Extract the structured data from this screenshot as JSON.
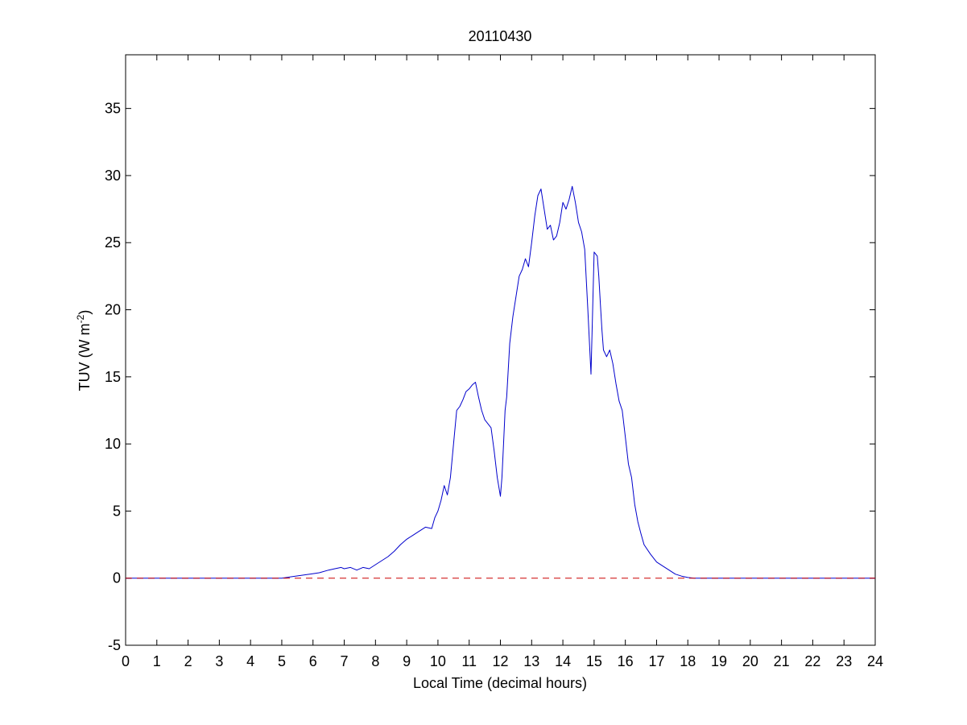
{
  "chart_data": {
    "type": "line",
    "title": "20110430",
    "xlabel": "Local Time (decimal hours)",
    "ylabel_main": "TUV (W m",
    "ylabel_sup": "-2",
    "ylabel_close": ")",
    "xlim": [
      0,
      24
    ],
    "ylim": [
      -5,
      39
    ],
    "xticks": [
      0,
      1,
      2,
      3,
      4,
      5,
      6,
      7,
      8,
      9,
      10,
      11,
      12,
      13,
      14,
      15,
      16,
      17,
      18,
      19,
      20,
      21,
      22,
      23,
      24
    ],
    "yticks": [
      -5,
      0,
      5,
      10,
      15,
      20,
      25,
      30,
      35
    ],
    "grid": false,
    "series": [
      {
        "color": "#0000cc",
        "style": "solid",
        "x": [
          0,
          5.0,
          5.3,
          5.6,
          5.9,
          6.2,
          6.5,
          6.7,
          6.9,
          7.0,
          7.2,
          7.4,
          7.6,
          7.8,
          8.0,
          8.2,
          8.4,
          8.6,
          8.8,
          9.0,
          9.2,
          9.4,
          9.6,
          9.8,
          9.9,
          10.0,
          10.1,
          10.2,
          10.3,
          10.4,
          10.5,
          10.6,
          10.7,
          10.8,
          10.9,
          11.0,
          11.1,
          11.2,
          11.3,
          11.4,
          11.5,
          11.6,
          11.7,
          11.8,
          11.9,
          12.0,
          12.05,
          12.1,
          12.15,
          12.2,
          12.3,
          12.4,
          12.5,
          12.6,
          12.7,
          12.8,
          12.9,
          13.0,
          13.1,
          13.2,
          13.3,
          13.4,
          13.5,
          13.6,
          13.7,
          13.8,
          13.9,
          14.0,
          14.1,
          14.2,
          14.3,
          14.4,
          14.5,
          14.6,
          14.7,
          14.8,
          14.9,
          15.0,
          15.1,
          15.15,
          15.2,
          15.25,
          15.3,
          15.4,
          15.5,
          15.6,
          15.7,
          15.8,
          15.9,
          16.0,
          16.1,
          16.2,
          16.3,
          16.4,
          16.5,
          16.6,
          16.8,
          17.0,
          17.2,
          17.4,
          17.6,
          17.8,
          18.0,
          18.2,
          18.4,
          18.6,
          18.8,
          19.0,
          19.2,
          19.4,
          20.0,
          22.0,
          24.0
        ],
        "y": [
          0,
          0,
          0.1,
          0.2,
          0.3,
          0.4,
          0.6,
          0.7,
          0.8,
          0.7,
          0.8,
          0.6,
          0.8,
          0.7,
          1.0,
          1.3,
          1.6,
          2.0,
          2.5,
          2.9,
          3.2,
          3.5,
          3.8,
          3.7,
          4.5,
          5.0,
          5.8,
          6.9,
          6.2,
          7.5,
          10.0,
          12.5,
          12.8,
          13.3,
          13.9,
          14.1,
          14.4,
          14.6,
          13.5,
          12.5,
          11.8,
          11.5,
          11.2,
          9.5,
          7.5,
          6.1,
          7.5,
          10.0,
          12.5,
          13.5,
          17.5,
          19.5,
          21.0,
          22.5,
          23.0,
          23.8,
          23.2,
          25.0,
          27.0,
          28.5,
          29.0,
          27.5,
          26.0,
          26.3,
          25.2,
          25.5,
          26.5,
          28.0,
          27.5,
          28.2,
          29.2,
          28.0,
          26.5,
          25.8,
          24.5,
          20.0,
          15.2,
          24.3,
          24.0,
          22.5,
          20.5,
          18.5,
          17.0,
          16.5,
          17.0,
          16.0,
          14.5,
          13.2,
          12.5,
          10.5,
          8.5,
          7.5,
          5.5,
          4.2,
          3.3,
          2.5,
          1.8,
          1.2,
          0.9,
          0.6,
          0.3,
          0.15,
          0.05,
          0,
          0,
          0,
          0,
          0,
          0,
          0,
          0,
          0,
          0
        ],
        "_note": "piecewise trace"
      },
      {
        "color": "#cc0000",
        "style": "dashed",
        "x": [
          0,
          24
        ],
        "y": [
          0,
          0
        ]
      }
    ]
  }
}
